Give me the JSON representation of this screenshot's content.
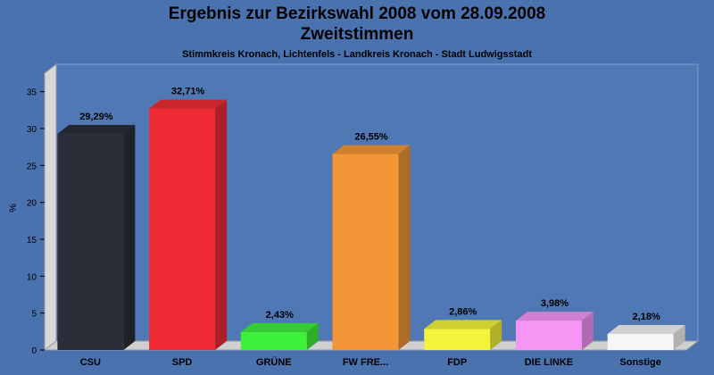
{
  "chart_data": {
    "type": "bar",
    "title": "Ergebnis zur Bezirkswahl 2008 vom 28.09.2008",
    "title_line2": "Zweitstimmen",
    "subtitle": "Stimmkreis Kronach, Lichtenfels - Landkreis Kronach - Stadt Ludwigsstadt",
    "ylabel": "%",
    "xlabel": "",
    "ylim": [
      0,
      37.5
    ],
    "yticks": [
      0,
      5,
      10,
      15,
      20,
      25,
      30,
      35
    ],
    "grid": false,
    "legend": "none",
    "categories": [
      "CSU",
      "SPD",
      "GRÜNE",
      "FW FRE...",
      "FDP",
      "DIE LINKE",
      "Sonstige"
    ],
    "values": [
      29.29,
      32.71,
      2.43,
      26.55,
      2.86,
      3.98,
      2.18
    ],
    "value_labels": [
      "29,29%",
      "32,71%",
      "2,43%",
      "26,55%",
      "2,86%",
      "3,98%",
      "2,18%"
    ],
    "colors": [
      "#2a2e38",
      "#ee2b35",
      "#3ef03a",
      "#f39637",
      "#f3f33a",
      "#f596f4",
      "#f6f6f6"
    ]
  }
}
